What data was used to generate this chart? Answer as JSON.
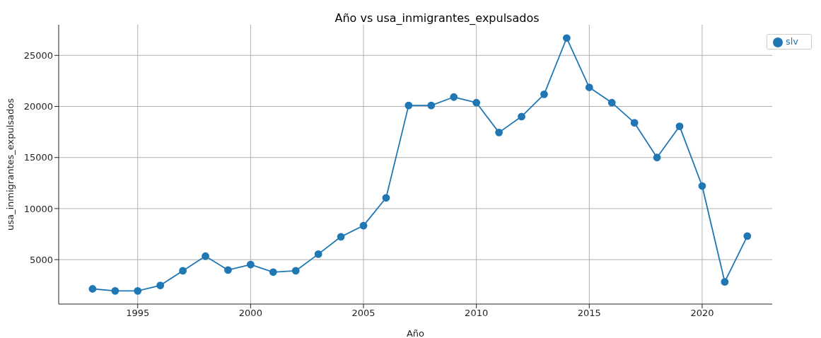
{
  "chart_data": {
    "type": "line",
    "title": "Año vs usa_inmigrantes_expulsados",
    "xlabel": "Año",
    "ylabel": "usa_inmigrantes_expulsados",
    "x": [
      1993,
      1994,
      1995,
      1996,
      1997,
      1998,
      1999,
      2000,
      2001,
      2002,
      2003,
      2004,
      2005,
      2006,
      2007,
      2008,
      2009,
      2010,
      2011,
      2012,
      2013,
      2014,
      2015,
      2016,
      2017,
      2018,
      2019,
      2020,
      2021,
      2022
    ],
    "series": [
      {
        "name": "slv",
        "color": "#1f77b4",
        "values": [
          2140,
          1940,
          1940,
          2480,
          3910,
          5340,
          3980,
          4520,
          3780,
          3910,
          5540,
          7240,
          8330,
          11050,
          20100,
          20100,
          20920,
          20370,
          17450,
          19010,
          21190,
          26700,
          21870,
          20370,
          18400,
          15000,
          18060,
          12210,
          2820,
          7310
        ]
      }
    ],
    "xlim": [
      1991.5,
      2023.1
    ],
    "xticks": [
      1995,
      2000,
      2005,
      2010,
      2015,
      2020
    ],
    "ylim": [
      650,
      28000
    ],
    "yticks": [
      5000,
      10000,
      15000,
      20000,
      25000
    ],
    "grid": true,
    "legend": "top right",
    "marker": "circle",
    "line_style": "solid"
  }
}
